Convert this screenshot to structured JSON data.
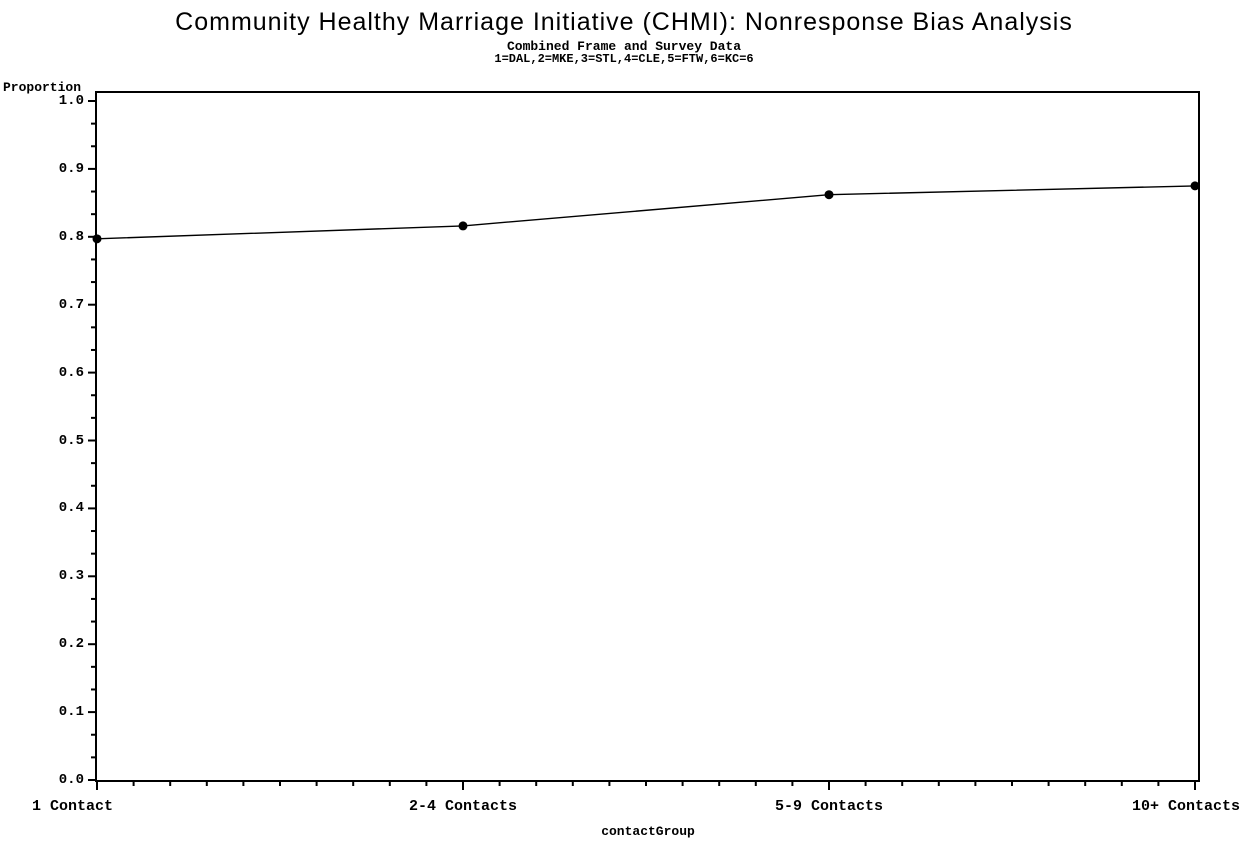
{
  "page": {
    "background": "#ffffff",
    "foreground": "#000000"
  },
  "header": {
    "title": "Community Healthy Marriage Initiative (CHMI): Nonresponse Bias Analysis",
    "subtitle1": "Combined Frame and Survey Data",
    "subtitle2": "1=DAL,2=MKE,3=STL,4=CLE,5=FTW,6=KC=6"
  },
  "chart_data": {
    "type": "line",
    "title": "Community Healthy Marriage Initiative (CHMI): Nonresponse Bias Analysis",
    "subtitle": "Combined Frame and Survey Data",
    "footnote": "1=DAL,2=MKE,3=STL,4=CLE,5=FTW,6=KC=6",
    "categories": [
      "1 Contact",
      "2-4 Contacts",
      "5-9 Contacts",
      "10+ Contacts"
    ],
    "values": [
      0.797,
      0.816,
      0.862,
      0.875
    ],
    "xlabel": "contactGroup",
    "ylabel": "Proportion",
    "ylim": [
      0.0,
      1.0
    ],
    "y_tick_labels": [
      "1.0",
      "0.9",
      "0.8",
      "0.7",
      "0.6",
      "0.5",
      "0.4",
      "0.3",
      "0.2",
      "0.1",
      "0.0"
    ],
    "y_major_interval": 0.1,
    "y_minor_ticks_per_interval": 2,
    "x_minor_ticks_per_interval": 9,
    "grid": false,
    "legend": "none",
    "frame": true,
    "marker": "filled-circle",
    "line_color": "#000000",
    "marker_color": "#000000"
  }
}
